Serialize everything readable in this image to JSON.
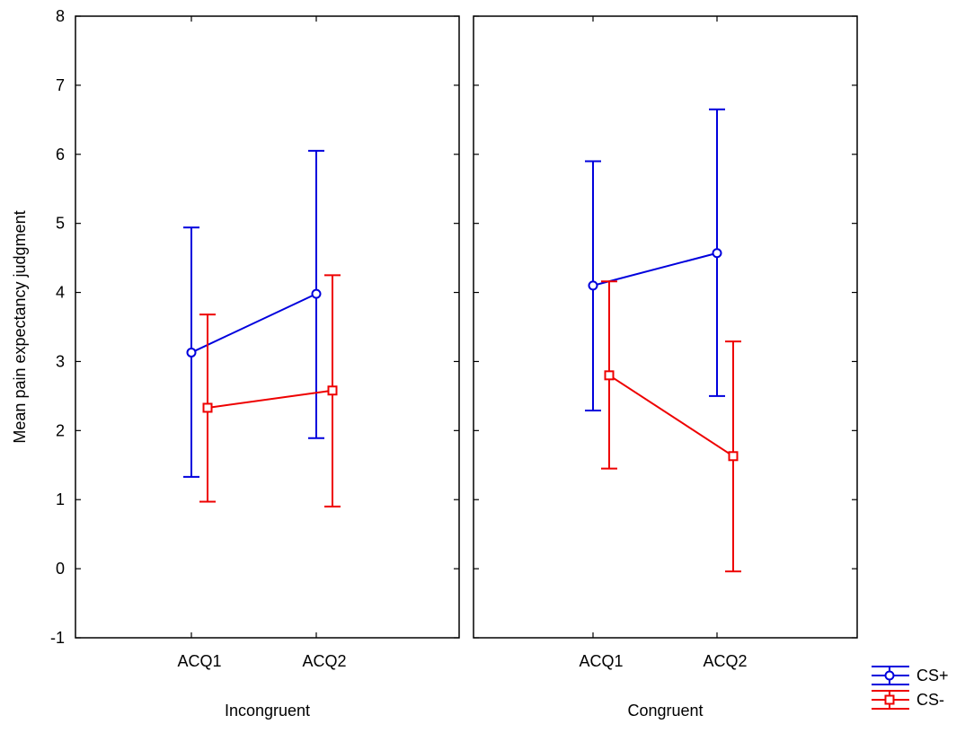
{
  "chart_data": {
    "type": "line",
    "ylabel": "Mean pain expectancy judgment",
    "ylim": [
      -1,
      8
    ],
    "yticks": [
      "-1",
      "0",
      "1",
      "2",
      "3",
      "4",
      "5",
      "6",
      "7",
      "8"
    ],
    "categories": [
      "ACQ1",
      "ACQ2"
    ],
    "grid": false,
    "legend_position": "bottom-right",
    "panels": [
      {
        "name": "Incongruent",
        "series": [
          {
            "name": "CS+",
            "color": "#0000dd",
            "marker": "circle",
            "values": [
              3.13,
              3.98
            ],
            "lower": [
              1.33,
              1.89
            ],
            "upper": [
              4.94,
              6.05
            ]
          },
          {
            "name": "CS-",
            "color": "#ee0000",
            "marker": "square",
            "values": [
              2.33,
              2.58
            ],
            "lower": [
              0.97,
              0.9
            ],
            "upper": [
              3.68,
              4.25
            ]
          }
        ]
      },
      {
        "name": "Congruent",
        "series": [
          {
            "name": "CS+",
            "color": "#0000dd",
            "marker": "circle",
            "values": [
              4.1,
              4.57
            ],
            "lower": [
              2.29,
              2.5
            ],
            "upper": [
              5.9,
              6.65
            ]
          },
          {
            "name": "CS-",
            "color": "#ee0000",
            "marker": "square",
            "values": [
              2.8,
              1.63
            ],
            "lower": [
              1.45,
              -0.04
            ],
            "upper": [
              4.16,
              3.29
            ]
          }
        ]
      }
    ],
    "legend": [
      {
        "name": "CS+",
        "color": "#0000dd",
        "marker": "circle"
      },
      {
        "name": "CS-",
        "color": "#ee0000",
        "marker": "square"
      }
    ]
  }
}
